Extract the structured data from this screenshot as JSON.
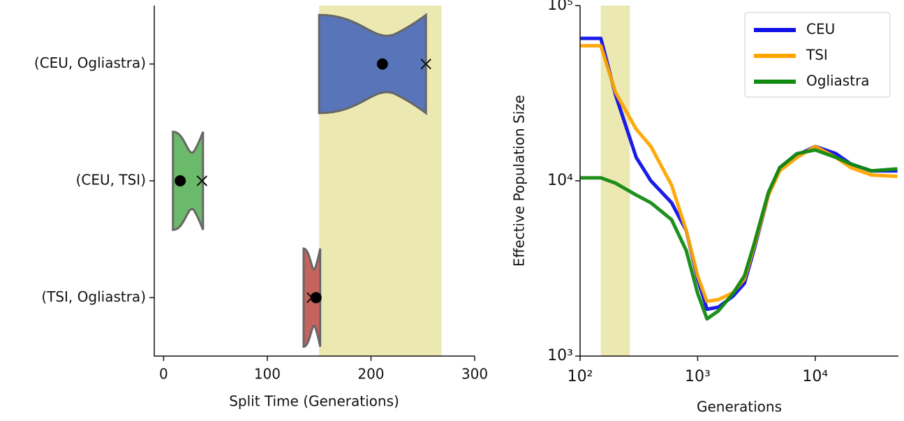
{
  "chart_data": [
    {
      "type": "violin",
      "xlabel": "Split Time (Generations)",
      "categories": [
        "(CEU, Ogliastra)",
        "(CEU, TSI)",
        "(TSI, Ogliastra)"
      ],
      "violins": [
        {
          "min": 150,
          "max": 253,
          "point": 211,
          "cross": 253,
          "color": "#5875b9"
        },
        {
          "min": 9,
          "max": 38,
          "point": 16,
          "cross": 37,
          "color": "#6bb96b"
        },
        {
          "min": 135,
          "max": 151,
          "point": 147,
          "cross": 143,
          "color": "#c5635c"
        }
      ],
      "span": [
        150,
        268
      ],
      "span_color": "#ebe8b2",
      "xlim": [
        -9,
        300
      ],
      "xticks": [
        0,
        100,
        200,
        300
      ]
    },
    {
      "type": "line",
      "xlabel": "Generations",
      "ylabel": "Effective Population Size",
      "log_x": true,
      "log_y": true,
      "x": [
        100,
        150,
        200,
        300,
        400,
        600,
        800,
        1000,
        1200,
        1500,
        2000,
        2500,
        3000,
        4000,
        5000,
        7000,
        10000,
        15000,
        20000,
        30000,
        50000
      ],
      "series": [
        {
          "name": "CEU",
          "color": "#1010e8",
          "values": [
            65000,
            65000,
            31000,
            13600,
            10000,
            7500,
            5200,
            2750,
            1850,
            1900,
            2200,
            2600,
            4000,
            8300,
            11900,
            14000,
            15700,
            14300,
            12500,
            11400,
            11400
          ]
        },
        {
          "name": "TSI",
          "color": "#ffa500",
          "values": [
            59000,
            59000,
            32000,
            19700,
            15700,
            9450,
            5200,
            2870,
            2050,
            2100,
            2300,
            2750,
            4150,
            8300,
            11400,
            13600,
            15700,
            13600,
            11900,
            10800,
            10600
          ]
        },
        {
          "name": "Ogliastra",
          "color": "#118a11",
          "values": [
            10400,
            10400,
            9700,
            8300,
            7500,
            6000,
            4000,
            2280,
            1630,
            1810,
            2280,
            2870,
            4300,
            8600,
            11900,
            14300,
            15000,
            13600,
            12500,
            11400,
            11700
          ]
        }
      ],
      "span": [
        150,
        265
      ],
      "span_color": "#ebe8b2",
      "xlim": [
        100,
        51000
      ],
      "ylim": [
        1000,
        100000
      ],
      "xticks": [
        {
          "value": 100,
          "label": "10²"
        },
        {
          "value": 1000,
          "label": "10³"
        },
        {
          "value": 10000,
          "label": "10⁴"
        }
      ],
      "yticks": [
        {
          "value": 1000,
          "label": "10³"
        },
        {
          "value": 10000,
          "label": "10⁴"
        },
        {
          "value": 100000,
          "label": "10⁵"
        }
      ],
      "legend": "upper right"
    }
  ]
}
